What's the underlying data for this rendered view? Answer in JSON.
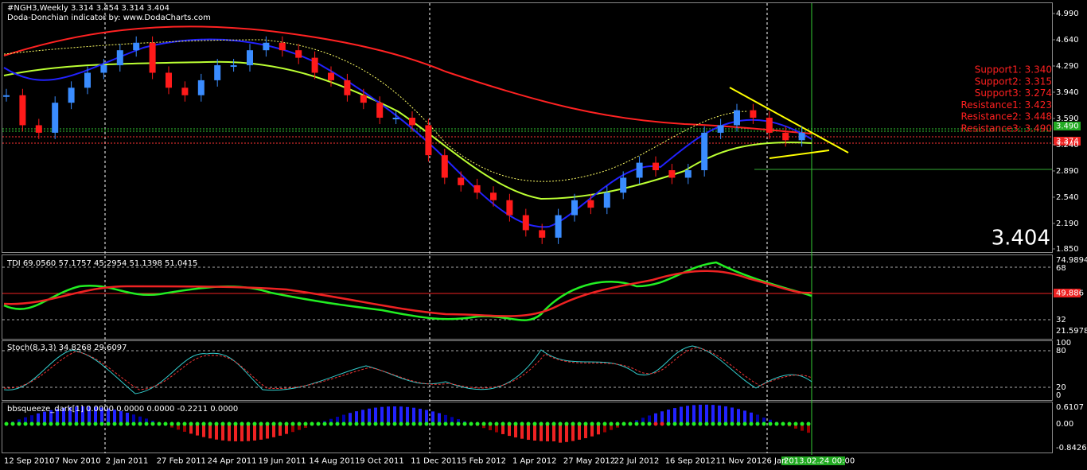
{
  "header": {
    "title": "#NGH3,Weekly  3.314 3.454 3.314 3.404",
    "subtitle": "Doda-Donchian indicator by: www.DodaCharts.com"
  },
  "price_panel": {
    "price_axis": [
      {
        "value": 4.99,
        "label": "4.990"
      },
      {
        "value": 4.64,
        "label": "4.640"
      },
      {
        "value": 4.29,
        "label": "4.290"
      },
      {
        "value": 3.94,
        "label": "3.940"
      },
      {
        "value": 3.59,
        "label": "3.590"
      },
      {
        "value": 3.24,
        "label": "3.240"
      },
      {
        "value": 2.89,
        "label": "2.890"
      },
      {
        "value": 2.54,
        "label": "2.540"
      },
      {
        "value": 2.19,
        "label": "2.190"
      },
      {
        "value": 1.85,
        "label": "1.850"
      }
    ],
    "levels": [
      "Support1: 3.340",
      "Support2: 3.315",
      "Support3: 3.274",
      "Resistance1: 3.423",
      "Resistance2: 3.448",
      "Resistance3: 3.490"
    ],
    "last_price": "3.404",
    "marker_green": "3.490",
    "marker_red": "3.374",
    "closes": [
      3.9,
      3.5,
      3.4,
      3.8,
      4.0,
      4.2,
      4.3,
      4.5,
      4.6,
      4.2,
      4.0,
      3.9,
      4.1,
      4.3,
      4.3,
      4.5,
      4.6,
      4.5,
      4.4,
      4.2,
      4.1,
      3.9,
      3.8,
      3.6,
      3.6,
      3.5,
      3.1,
      2.8,
      2.7,
      2.6,
      2.5,
      2.3,
      2.1,
      2.0,
      2.3,
      2.5,
      2.4,
      2.6,
      2.8,
      3.0,
      2.9,
      2.8,
      2.9,
      3.4,
      3.5,
      3.7,
      3.6,
      3.4,
      3.3,
      3.4
    ]
  },
  "tdi_panel": {
    "label": "TDI 69.0560 57.1757 45.2954 51.1398 51.0415",
    "axis": [
      "74.9894",
      "68",
      "49.886",
      "32",
      "21.5978"
    ]
  },
  "stoch_panel": {
    "label": "Stoch(8,3,3) 34.8268 29.6097",
    "axis": [
      "100",
      "80",
      "20",
      "0"
    ]
  },
  "squeeze_panel": {
    "label": "bbsqueeze_dark[1] 0.0000 0.0000 0.0000 -0.2211 0.0000",
    "axis": [
      "0.6107",
      "0.00",
      "-0.8426"
    ]
  },
  "time_axis": {
    "dates": [
      "12 Sep 2010",
      "7 Nov 2010",
      "2 Jan 2011",
      "27 Feb 2011",
      "24 Apr 2011",
      "19 Jun 2011",
      "14 Aug 2011",
      "9 Oct 2011",
      "11 Dec 2011",
      "5 Feb 2012",
      "1 Apr 2012",
      "27 May 2012",
      "22 Jul 2012",
      "16 Sep 2012",
      "11 Nov 2012",
      "6 Jan"
    ],
    "cursor": "2013.02.24 00:00"
  }
}
